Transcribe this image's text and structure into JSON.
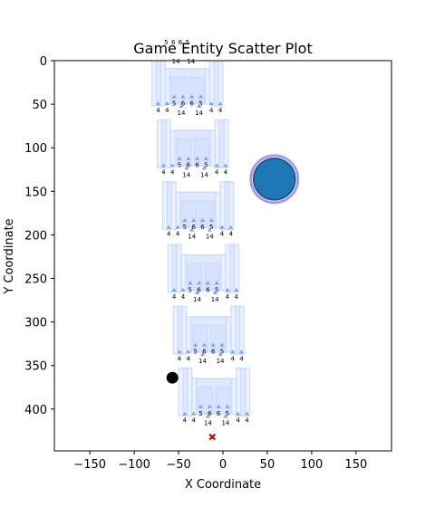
{
  "chart_data": {
    "type": "scatter",
    "title": "Game Entity Scatter Plot",
    "xlabel": "X Coordinate",
    "ylabel": "Y Coordinate",
    "xlim": [
      -190,
      190
    ],
    "ylim": [
      0,
      448
    ],
    "y_inverted": true,
    "grid": false,
    "x_ticks": [
      -150,
      -100,
      -50,
      0,
      50,
      100,
      150
    ],
    "y_ticks": [
      0,
      50,
      100,
      150,
      200,
      250,
      300,
      350,
      400
    ],
    "colors": {
      "structure": "#c8d8ff",
      "node": "#7fa0e6",
      "player": "#1f77b4",
      "player_ring": "#8c82e6",
      "enemy": "#000000",
      "target": "#cc0000"
    },
    "structures": [
      {
        "x": -40,
        "y": 24
      },
      {
        "x": -34,
        "y": 95
      },
      {
        "x": -28,
        "y": 166
      },
      {
        "x": -22,
        "y": 238
      },
      {
        "x": -16,
        "y": 309
      },
      {
        "x": -10,
        "y": 380
      }
    ],
    "structure_labels": {
      "inner": [
        "5",
        "6",
        "6",
        "5"
      ],
      "outer": [
        "4",
        "4",
        "4",
        "4"
      ],
      "bottom": [
        "14",
        "14"
      ]
    },
    "top_clipped_labels": [
      "5",
      "6",
      "6",
      "5",
      "14",
      "14"
    ],
    "player": {
      "x": 58,
      "y": 136
    },
    "enemy": {
      "x": -57,
      "y": 364
    },
    "target": {
      "x": -12,
      "y": 432
    }
  }
}
